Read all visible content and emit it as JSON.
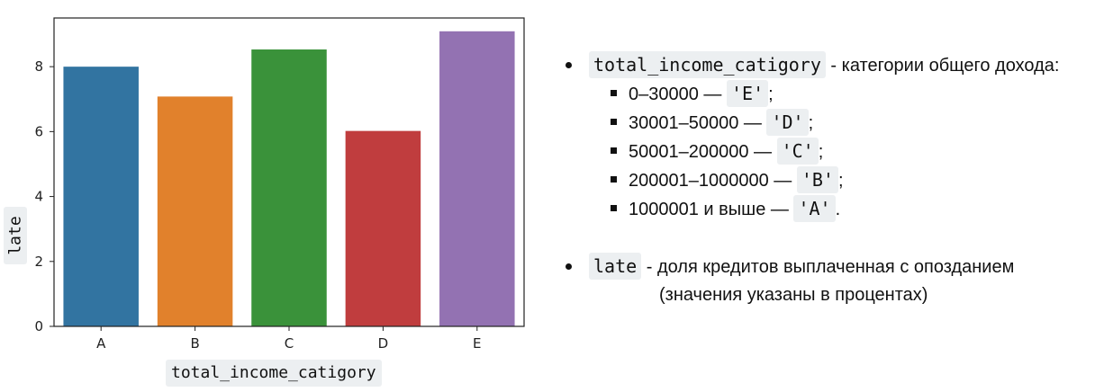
{
  "chart_data": {
    "type": "bar",
    "categories": [
      "A",
      "B",
      "C",
      "D",
      "E"
    ],
    "values": [
      8.0,
      7.08,
      8.53,
      6.02,
      9.09
    ],
    "colors": [
      "#3274a1",
      "#e1812c",
      "#3a923a",
      "#c03d3e",
      "#9372b2"
    ],
    "xlabel": "total_income_catigory",
    "ylabel": "late",
    "ylim": [
      0,
      9.5
    ],
    "yticks": [
      0,
      2,
      4,
      6,
      8
    ],
    "grid": false
  },
  "notes": {
    "income": {
      "code": "total_income_catigory",
      "text": " - категории общего дохода:",
      "items": [
        {
          "range": "0–30000 — ",
          "code": "'E'",
          "end": ";"
        },
        {
          "range": "30001–50000 — ",
          "code": "'D'",
          "end": ";"
        },
        {
          "range": "50001–200000 — ",
          "code": "'C'",
          "end": ";"
        },
        {
          "range": "200001–1000000 — ",
          "code": "'B'",
          "end": ";"
        },
        {
          "range": "1000001 и выше — ",
          "code": "'A'",
          "end": "."
        }
      ]
    },
    "late": {
      "code": "late",
      "text": " - доля кредитов выплаченная с опозданием",
      "text2": "(значения указаны в процентах)"
    }
  }
}
